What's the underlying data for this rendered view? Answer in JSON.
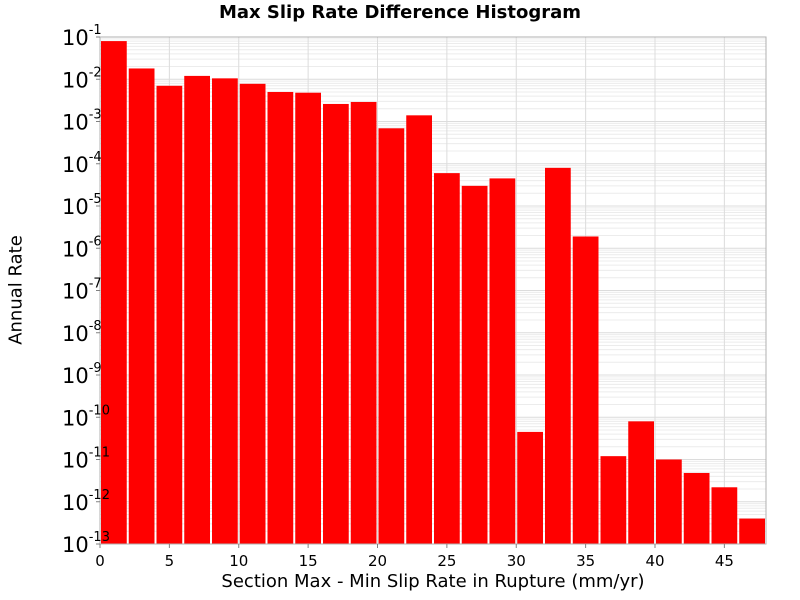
{
  "chart_data": {
    "type": "bar",
    "title": "Max Slip Rate Difference Histogram",
    "xlabel": "Section Max - Min Slip Rate in Rupture (mm/yr)",
    "ylabel": "Annual Rate",
    "y_scale": "log",
    "xlim": [
      0,
      48
    ],
    "ylim": [
      1e-13,
      0.1
    ],
    "grid": true,
    "bar_color": "#ff0000",
    "bin_width": 2,
    "x_ticks": [
      0,
      5,
      10,
      15,
      20,
      25,
      30,
      35,
      40,
      45
    ],
    "y_tick_exponents": [
      -1,
      -2,
      -3,
      -4,
      -5,
      -6,
      -7,
      -8,
      -9,
      -10,
      -11,
      -12,
      -13
    ],
    "y_tick_base": "10",
    "x": [
      1,
      3,
      5,
      7,
      9,
      11,
      13,
      15,
      17,
      19,
      21,
      23,
      25,
      27,
      29,
      31,
      33,
      35,
      37,
      39,
      41,
      43,
      45,
      47
    ],
    "values": [
      0.08,
      0.018,
      0.007,
      0.012,
      0.0105,
      0.0078,
      0.005,
      0.0048,
      0.0026,
      0.0029,
      0.00069,
      0.0014,
      6e-05,
      3e-05,
      4.5e-05,
      4.5e-11,
      8e-05,
      1.9e-06,
      1.2e-11,
      8e-11,
      1e-11,
      4.8e-12,
      2.2e-12,
      4e-13
    ]
  }
}
